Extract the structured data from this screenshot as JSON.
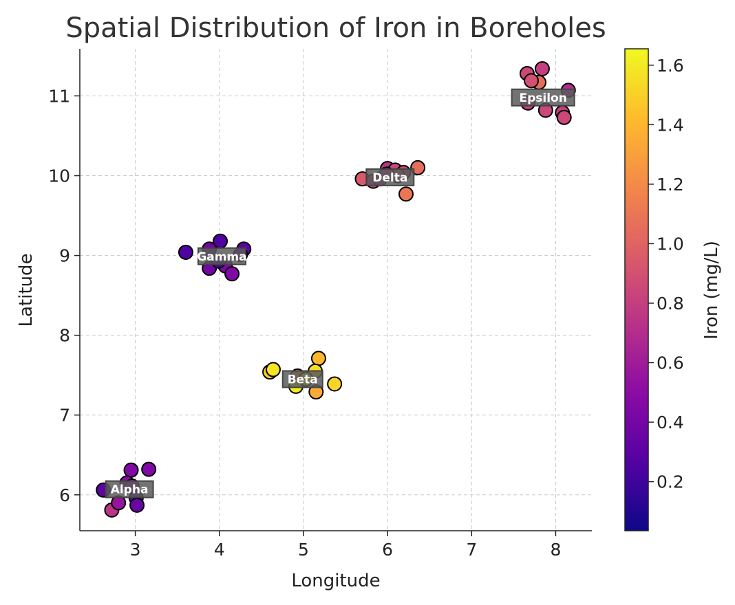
{
  "chart_data": {
    "type": "scatter",
    "title": "Spatial Distribution of Iron in Boreholes",
    "xlabel": "Longitude",
    "ylabel": "Latitude",
    "xlim": [
      2.34,
      8.43
    ],
    "ylim": [
      5.55,
      11.59
    ],
    "xticks": [
      3,
      4,
      5,
      6,
      7,
      8
    ],
    "yticks": [
      6,
      7,
      8,
      9,
      10,
      11
    ],
    "grid": true,
    "colormap": "plasma",
    "colorbar": {
      "label": "Iron (mg/L)",
      "range": [
        0.035,
        1.655
      ],
      "ticks": [
        "0.2",
        "0.4",
        "0.6",
        "0.8",
        "1.0",
        "1.2",
        "1.4",
        "1.6"
      ]
    },
    "clusters": [
      {
        "name": "Alpha",
        "center": [
          2.93,
          6.07
        ]
      },
      {
        "name": "Gamma",
        "center": [
          4.03,
          8.99
        ]
      },
      {
        "name": "Beta",
        "center": [
          4.99,
          7.45
        ]
      },
      {
        "name": "Delta",
        "center": [
          6.03,
          9.98
        ]
      },
      {
        "name": "Epsilon",
        "center": [
          7.85,
          10.98
        ]
      }
    ],
    "points": [
      [
        2.62,
        6.06,
        0.3
      ],
      [
        2.95,
        6.31,
        0.45
      ],
      [
        3.16,
        6.32,
        0.45
      ],
      [
        2.72,
        5.81,
        0.75
      ],
      [
        2.8,
        5.9,
        0.55
      ],
      [
        2.9,
        6.15,
        0.5
      ],
      [
        2.96,
        6.11,
        0.55
      ],
      [
        3.01,
        5.96,
        0.3
      ],
      [
        3.02,
        5.87,
        0.35
      ],
      [
        3.6,
        9.04,
        0.25
      ],
      [
        4.01,
        9.18,
        0.25
      ],
      [
        3.88,
        9.08,
        0.4
      ],
      [
        4.29,
        9.08,
        0.3
      ],
      [
        4.25,
        9.01,
        0.35
      ],
      [
        3.88,
        8.84,
        0.4
      ],
      [
        4.07,
        8.87,
        0.45
      ],
      [
        4.15,
        8.77,
        0.45
      ],
      [
        3.99,
        8.93,
        0.2
      ],
      [
        4.6,
        7.54,
        1.5
      ],
      [
        4.64,
        7.57,
        1.58
      ],
      [
        5.18,
        7.71,
        1.4
      ],
      [
        5.14,
        7.55,
        1.55
      ],
      [
        4.93,
        7.49,
        1.25
      ],
      [
        4.91,
        7.36,
        1.62
      ],
      [
        5.37,
        7.39,
        1.52
      ],
      [
        5.15,
        7.29,
        1.35
      ],
      [
        5.03,
        7.45,
        1.6
      ],
      [
        5.7,
        9.96,
        0.95
      ],
      [
        6.0,
        10.09,
        0.75
      ],
      [
        6.09,
        10.07,
        0.85
      ],
      [
        6.19,
        10.04,
        0.85
      ],
      [
        6.36,
        10.1,
        1.05
      ],
      [
        5.83,
        9.93,
        0.8
      ],
      [
        5.91,
        9.96,
        0.7
      ],
      [
        6.22,
        9.77,
        1.1
      ],
      [
        6.12,
        10.0,
        0.9
      ],
      [
        5.99,
        10.02,
        0.75
      ],
      [
        7.66,
        11.28,
        0.85
      ],
      [
        7.84,
        11.34,
        0.8
      ],
      [
        7.8,
        11.17,
        1.05
      ],
      [
        7.71,
        11.19,
        0.9
      ],
      [
        8.15,
        11.07,
        0.7
      ],
      [
        7.67,
        10.91,
        0.8
      ],
      [
        7.88,
        10.82,
        0.85
      ],
      [
        8.08,
        10.79,
        0.8
      ],
      [
        8.1,
        10.73,
        0.85
      ]
    ]
  }
}
